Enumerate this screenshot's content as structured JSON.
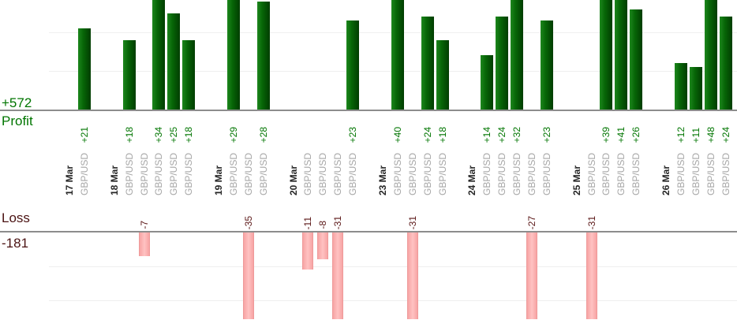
{
  "chart_data": {
    "type": "bar",
    "orientation": "vertical-columns",
    "description_visible_text_only": true,
    "profit_panel": {
      "axis_label": "Profit",
      "total_label": "+572",
      "gridline_values": [
        10,
        20
      ],
      "value_text_color": "#007500",
      "bar_color_light": "#1d871d",
      "bar_color_mid": "#076607",
      "bar_color_dark": "#013d01"
    },
    "loss_panel": {
      "axis_label": "Loss",
      "total_label": "-181",
      "gridline_values": [
        -10,
        -20
      ],
      "axis_text_color": "#4a1212",
      "value_text_color": "#5a1616",
      "bar_color_light": "#ffc2c2",
      "bar_color_edge": "#f7a4a4",
      "bar_border_color": "#ee9a9a"
    },
    "x_axis": {
      "symbol_text_color": "#a6a6a6",
      "date_text_color": "#262626",
      "gridlines": true
    },
    "groups": [
      {
        "date": "17 Mar",
        "trades": [
          {
            "symbol": "GBP/USD",
            "value": 21,
            "label": "+21"
          }
        ]
      },
      {
        "date": "18 Mar",
        "trades": [
          {
            "symbol": "GBP/USD",
            "value": 18,
            "label": "+18"
          },
          {
            "symbol": "GBP/USD",
            "value": -7,
            "label": "-7"
          },
          {
            "symbol": "GBP/USD",
            "value": 34,
            "label": "+34"
          },
          {
            "symbol": "GBP/USD",
            "value": 25,
            "label": "+25"
          },
          {
            "symbol": "GBP/USD",
            "value": 18,
            "label": "+18"
          }
        ]
      },
      {
        "date": "19 Mar",
        "trades": [
          {
            "symbol": "GBP/USD",
            "value": 29,
            "label": "+29"
          },
          {
            "symbol": "GBP/USD",
            "value": -35,
            "label": "-35"
          },
          {
            "symbol": "GBP/USD",
            "value": 28,
            "label": "+28"
          }
        ]
      },
      {
        "date": "20 Mar",
        "trades": [
          {
            "symbol": "GBP/USD",
            "value": -11,
            "label": "-11"
          },
          {
            "symbol": "GBP/USD",
            "value": -8,
            "label": "-8"
          },
          {
            "symbol": "GBP/USD",
            "value": -31,
            "label": "-31"
          },
          {
            "symbol": "GBP/USD",
            "value": 23,
            "label": "+23"
          }
        ]
      },
      {
        "date": "23 Mar",
        "trades": [
          {
            "symbol": "GBP/USD",
            "value": 40,
            "label": "+40"
          },
          {
            "symbol": "GBP/USD",
            "value": -31,
            "label": "-31"
          },
          {
            "symbol": "GBP/USD",
            "value": 24,
            "label": "+24"
          },
          {
            "symbol": "GBP/USD",
            "value": 18,
            "label": "+18"
          }
        ]
      },
      {
        "date": "24 Mar",
        "trades": [
          {
            "symbol": "GBP/USD",
            "value": 14,
            "label": "+14"
          },
          {
            "symbol": "GBP/USD",
            "value": 24,
            "label": "+24"
          },
          {
            "symbol": "GBP/USD",
            "value": 32,
            "label": "+32"
          },
          {
            "symbol": "GBP/USD",
            "value": -27,
            "label": "-27"
          },
          {
            "symbol": "GBP/USD",
            "value": 23,
            "label": "+23"
          }
        ]
      },
      {
        "date": "25 Mar",
        "trades": [
          {
            "symbol": "GBP/USD",
            "value": -31,
            "label": "-31"
          },
          {
            "symbol": "GBP/USD",
            "value": 39,
            "label": "+39"
          },
          {
            "symbol": "GBP/USD",
            "value": 41,
            "label": "+41"
          },
          {
            "symbol": "GBP/USD",
            "value": 26,
            "label": "+26"
          }
        ]
      },
      {
        "date": "26 Mar",
        "trades": [
          {
            "symbol": "GBP/USD",
            "value": 12,
            "label": "+12"
          },
          {
            "symbol": "GBP/USD",
            "value": 11,
            "label": "+11"
          },
          {
            "symbol": "GBP/USD",
            "value": 48,
            "label": "+48"
          },
          {
            "symbol": "GBP/USD",
            "value": 24,
            "label": "+24"
          }
        ]
      }
    ]
  }
}
